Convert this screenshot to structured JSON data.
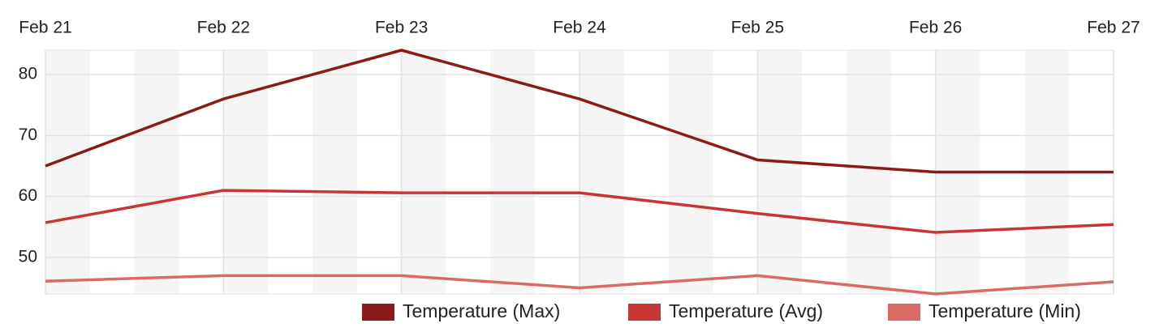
{
  "chart_data": {
    "type": "line",
    "categories": [
      "Feb 21",
      "Feb 22",
      "Feb 23",
      "Feb 24",
      "Feb 25",
      "Feb 26",
      "Feb 27"
    ],
    "series": [
      {
        "name": "Temperature (Max)",
        "color": "#8b1a1a",
        "values": [
          65,
          76,
          84,
          76,
          66,
          64,
          64
        ]
      },
      {
        "name": "Temperature (Avg)",
        "color": "#c93434",
        "values": [
          55.7,
          61,
          60.6,
          60.6,
          57.2,
          54.1,
          55.4
        ]
      },
      {
        "name": "Temperature (Min)",
        "color": "#d96a66",
        "values": [
          46.1,
          47,
          47,
          45,
          47,
          44,
          46
        ]
      }
    ],
    "ylim": [
      44,
      84
    ],
    "yticks": [
      50,
      60,
      70,
      80
    ],
    "grid": true
  }
}
